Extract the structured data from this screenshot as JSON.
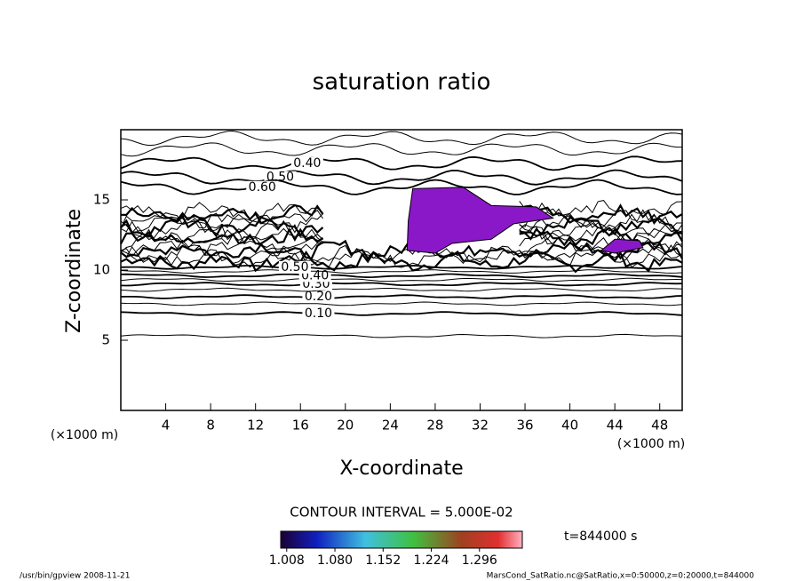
{
  "chart_data": {
    "type": "contour",
    "title": "saturation ratio",
    "xlabel": "X-coordinate",
    "ylabel": "Z-coordinate",
    "x_unit_left": "(×1000 m)",
    "x_unit_right": "(×1000 m)",
    "xlim": [
      0,
      50
    ],
    "ylim": [
      0,
      20
    ],
    "xticks": [
      4,
      8,
      12,
      16,
      20,
      24,
      28,
      32,
      36,
      40,
      44,
      48
    ],
    "yticks": [
      5,
      10,
      15
    ],
    "contours": [
      {
        "level": 0.05,
        "z": 5.3
      },
      {
        "level": {
          "value": 0.1,
          "label": "0.10"
        },
        "z": 6.9,
        "label_x": 17.6
      },
      {
        "level": 0.15,
        "z": 7.6
      },
      {
        "level": {
          "value": 0.2,
          "label": "0.20"
        },
        "z": 8.1,
        "label_x": 17.6
      },
      {
        "level": 0.25,
        "z": 8.6
      },
      {
        "level": {
          "value": 0.3,
          "label": "0.30"
        },
        "z": 9.0,
        "label_x": 17.4
      },
      {
        "level": 0.35,
        "z": 9.3
      },
      {
        "level": {
          "value": 0.4,
          "label": "0.40"
        },
        "z": 9.6,
        "label_x": 17.3
      },
      {
        "level": 0.45,
        "z": 9.9
      },
      {
        "level": {
          "value": 0.5,
          "label": "0.50"
        },
        "z": 10.2,
        "label_x": 15.5
      },
      {
        "level": 0.3,
        "z": 19.4
      },
      {
        "level": 0.35,
        "z": 18.6
      },
      {
        "level": {
          "value": 0.4,
          "label": "0.40"
        },
        "z": 17.6,
        "label_x": 16.6
      },
      {
        "level": {
          "value": 0.5,
          "label": "0.50"
        },
        "z": 16.6,
        "label_x": 14.2
      },
      {
        "level": {
          "value": 0.6,
          "label": "0.60"
        },
        "z": 15.9,
        "label_x": 12.6
      }
    ],
    "contour_interval": "CONTOUR INTERVAL = 5.000E-02",
    "time_label": "t=844000 s",
    "clim": [
      0.999,
      1.36
    ],
    "cticks": [
      1.008,
      {
        "value": 1.08,
        "label": "1.080"
      },
      1.152,
      1.224,
      1.296
    ],
    "footer_left": "/usr/bin/gpview  2008-11-21",
    "footer_right": "MarsCond_SatRatio.nc@SatRatio,x=0:50000,z=0:20000,t=844000"
  }
}
